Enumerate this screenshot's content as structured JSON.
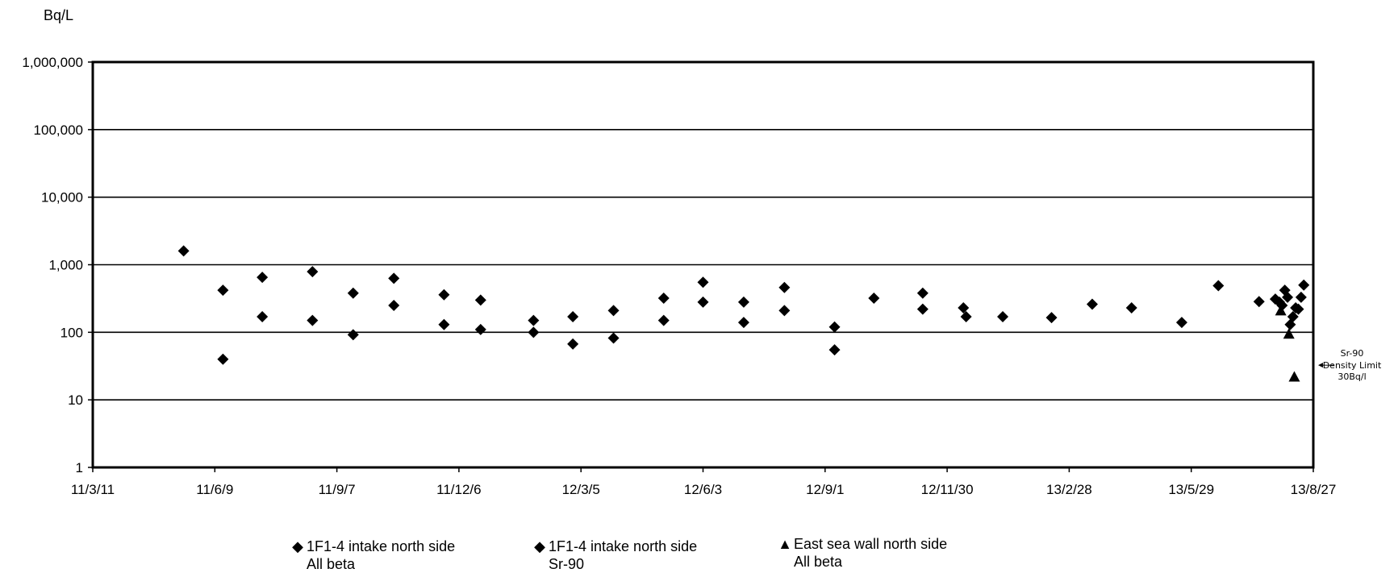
{
  "chart_data": {
    "type": "scatter",
    "title": "",
    "ylabel": "Bq/L",
    "yscale": "log",
    "ylim": [
      1,
      1000000
    ],
    "y_ticks": [
      "1",
      "10",
      "100",
      "1,000",
      "10,000",
      "100,000",
      "1,000,000"
    ],
    "xlim": [
      "2011-03-11",
      "2013-08-27"
    ],
    "x_ticks": [
      "11/3/11",
      "11/6/9",
      "11/9/7",
      "11/12/6",
      "12/3/5",
      "12/6/3",
      "12/9/1",
      "12/11/30",
      "13/2/28",
      "13/5/29",
      "13/8/27"
    ],
    "grid": true,
    "series": [
      {
        "name": "1F1-4 intake north side All beta",
        "marker": "diamond",
        "points": [
          [
            "2011-05-17",
            1600
          ],
          [
            "2011-06-15",
            420
          ],
          [
            "2011-06-15",
            40
          ],
          [
            "2011-07-14",
            650
          ],
          [
            "2011-07-14",
            170
          ],
          [
            "2011-08-20",
            790
          ],
          [
            "2011-08-20",
            150
          ],
          [
            "2011-09-19",
            380
          ],
          [
            "2011-09-19",
            92
          ],
          [
            "2011-10-19",
            630
          ],
          [
            "2011-10-19",
            250
          ],
          [
            "2011-11-25",
            360
          ],
          [
            "2011-11-25",
            130
          ],
          [
            "2011-12-22",
            300
          ],
          [
            "2011-12-22",
            110
          ],
          [
            "2012-01-30",
            150
          ],
          [
            "2012-01-30",
            100
          ],
          [
            "2012-02-28",
            170
          ],
          [
            "2012-02-28",
            67
          ],
          [
            "2012-03-29",
            210
          ],
          [
            "2012-03-29",
            82
          ],
          [
            "2012-05-05",
            320
          ],
          [
            "2012-05-05",
            150
          ],
          [
            "2012-06-03",
            550
          ],
          [
            "2012-06-03",
            280
          ],
          [
            "2012-07-03",
            280
          ],
          [
            "2012-07-03",
            140
          ],
          [
            "2012-08-02",
            460
          ],
          [
            "2012-08-02",
            210
          ],
          [
            "2012-09-08",
            120
          ],
          [
            "2012-09-08",
            55
          ],
          [
            "2012-10-07",
            320
          ],
          [
            "2012-11-12",
            380
          ],
          [
            "2012-11-12",
            220
          ],
          [
            "2012-12-12",
            230
          ],
          [
            "2012-12-14",
            170
          ],
          [
            "2013-01-10",
            170
          ],
          [
            "2013-02-15",
            165
          ],
          [
            "2013-03-17",
            260
          ],
          [
            "2013-04-15",
            230
          ],
          [
            "2013-05-22",
            140
          ]
        ]
      },
      {
        "name": "1F1-4 intake north side Sr-90",
        "marker": "diamond",
        "points": [
          [
            "2013-06-18",
            490
          ],
          [
            "2013-07-18",
            285
          ],
          [
            "2013-07-30",
            310
          ],
          [
            "2013-08-02",
            280
          ],
          [
            "2013-08-04",
            250
          ],
          [
            "2013-08-06",
            420
          ],
          [
            "2013-08-08",
            330
          ],
          [
            "2013-08-10",
            130
          ],
          [
            "2013-08-12",
            170
          ],
          [
            "2013-08-14",
            230
          ],
          [
            "2013-08-16",
            220
          ],
          [
            "2013-08-18",
            330
          ],
          [
            "2013-08-20",
            500
          ]
        ]
      },
      {
        "name": "East sea wall north side All beta",
        "marker": "triangle",
        "points": [
          [
            "2013-08-03",
            210
          ],
          [
            "2013-08-09",
            95
          ],
          [
            "2013-08-13",
            22
          ]
        ]
      }
    ],
    "annotation": {
      "lines": [
        "Sr-90",
        "Density Limit",
        "30Bq/l"
      ],
      "value": 30
    }
  },
  "legend": [
    {
      "symbol": "◆",
      "line1": "1F1-4 intake north side",
      "line2": "All beta"
    },
    {
      "symbol": "◆",
      "line1": "1F1-4 intake north side",
      "line2": "Sr-90"
    },
    {
      "symbol": "▲",
      "line1": "East sea wall north side",
      "line2": "All beta"
    }
  ]
}
